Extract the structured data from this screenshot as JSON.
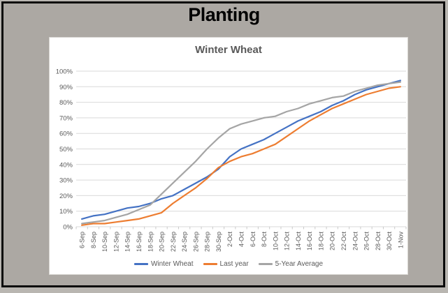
{
  "window": {
    "title": "Planting"
  },
  "colors": {
    "page_background": "#B9B6B1",
    "frame_background": "#ACA8A3",
    "frame_border": "#0A0A0A",
    "chart_background": "#FFFFFF",
    "panel_border": "#D8D5D1",
    "gridline": "#D9D9D9",
    "tick": "#C9C9C9",
    "axis_text": "#595959",
    "title_text": "#000000",
    "chart_title_text": "#595959",
    "series_blue": "#4472C4",
    "series_orange": "#ED7D31",
    "series_gray": "#A5A5A5"
  },
  "chart_data": {
    "type": "line",
    "title": "Winter Wheat",
    "xlabel": "",
    "ylabel": "",
    "ylim": [
      0,
      100
    ],
    "ytick_step": 10,
    "ytick_labels": [
      "0%",
      "10%",
      "20%",
      "30%",
      "40%",
      "50%",
      "60%",
      "70%",
      "80%",
      "90%",
      "100%"
    ],
    "grid": true,
    "legend_position": "bottom",
    "categories": [
      "6-Sep",
      "8-Sep",
      "10-Sep",
      "12-Sep",
      "14-Sep",
      "16-Sep",
      "18-Sep",
      "20-Sep",
      "22-Sep",
      "24-Sep",
      "26-Sep",
      "28-Sep",
      "30-Sep",
      "2-Oct",
      "4-Oct",
      "6-Oct",
      "8-Oct",
      "10-Oct",
      "12-Oct",
      "14-Oct",
      "16-Oct",
      "18-Oct",
      "20-Oct",
      "22-Oct",
      "24-Oct",
      "26-Oct",
      "28-Oct",
      "30-Oct",
      "1-Nov"
    ],
    "series": [
      {
        "name": "Winter Wheat",
        "color": "#4472C4",
        "values": [
          5,
          7,
          8,
          10,
          12,
          13,
          15,
          18,
          20,
          24,
          28,
          32,
          37,
          45,
          50,
          53,
          56,
          60,
          64,
          68,
          71,
          74,
          78,
          81,
          85,
          88,
          90,
          92,
          94
        ]
      },
      {
        "name": "Last year",
        "color": "#ED7D31",
        "values": [
          1,
          2,
          2,
          3,
          4,
          5,
          7,
          9,
          15,
          20,
          25,
          31,
          38,
          42,
          45,
          47,
          50,
          53,
          58,
          63,
          68,
          72,
          76,
          79,
          82,
          85,
          87,
          89,
          90
        ]
      },
      {
        "name": "5-Year Average",
        "color": "#A5A5A5",
        "values": [
          2,
          3,
          4,
          6,
          8,
          11,
          14,
          21,
          28,
          35,
          42,
          50,
          57,
          63,
          66,
          68,
          70,
          71,
          74,
          76,
          79,
          81,
          83,
          84,
          87,
          89,
          91,
          92,
          93
        ]
      }
    ]
  }
}
